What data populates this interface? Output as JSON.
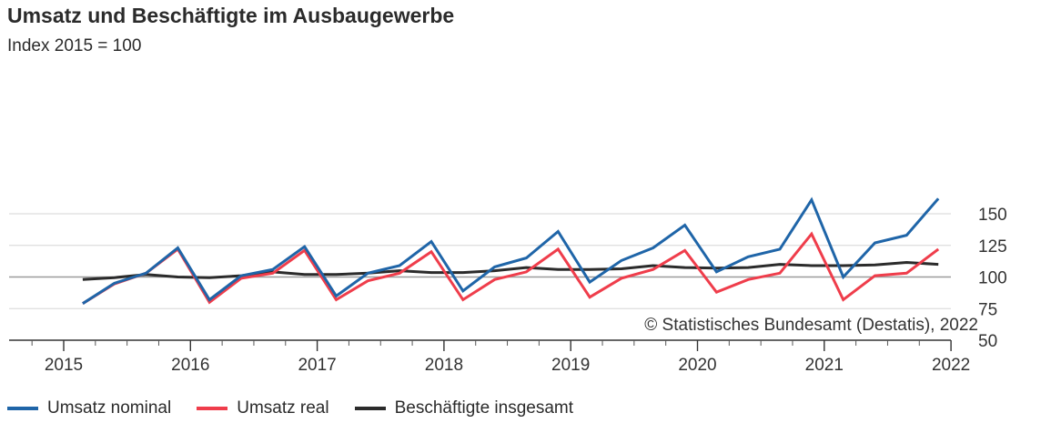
{
  "title": "Umsatz und Beschäftigte im Ausbaugewerbe",
  "subtitle": "Index 2015 = 100",
  "copyright": "© Statistisches Bundesamt (Destatis), 2022",
  "chart_data": {
    "type": "line",
    "title": "Umsatz und Beschäftigte im Ausbaugewerbe",
    "subtitle": "Index 2015 = 100",
    "xlabel": "",
    "ylabel": "",
    "ylim": [
      50,
      165
    ],
    "yticks": [
      50,
      75,
      100,
      125,
      150
    ],
    "reference_line": 100,
    "x_year_labels": [
      "2015",
      "2016",
      "2017",
      "2018",
      "2019",
      "2020",
      "2021",
      "2022"
    ],
    "x": [
      "2015-Q1",
      "2015-Q2",
      "2015-Q3",
      "2015-Q4",
      "2016-Q1",
      "2016-Q2",
      "2016-Q3",
      "2016-Q4",
      "2017-Q1",
      "2017-Q2",
      "2017-Q3",
      "2017-Q4",
      "2018-Q1",
      "2018-Q2",
      "2018-Q3",
      "2018-Q4",
      "2019-Q1",
      "2019-Q2",
      "2019-Q3",
      "2019-Q4",
      "2020-Q1",
      "2020-Q2",
      "2020-Q3",
      "2020-Q4",
      "2021-Q1",
      "2021-Q2",
      "2021-Q3",
      "2021-Q4"
    ],
    "grid": true,
    "legend_position": "bottom-left",
    "series": [
      {
        "name": "Umsatz nominal",
        "color": "#1f65a8",
        "values": [
          79,
          95,
          103,
          123,
          82,
          101,
          106,
          124,
          85,
          103,
          109,
          128,
          89,
          108,
          115,
          136,
          96,
          113,
          123,
          141,
          104,
          116,
          122,
          161,
          100,
          127,
          133,
          162
        ]
      },
      {
        "name": "Umsatz real",
        "color": "#ef3d4b",
        "values": [
          79,
          94.5,
          103,
          122,
          80,
          99,
          103,
          121,
          82,
          97,
          103,
          120,
          82,
          98,
          104,
          122,
          84,
          99,
          106,
          121,
          88,
          98,
          103,
          134,
          82,
          101,
          103,
          122
        ]
      },
      {
        "name": "Beschäftigte insgesamt",
        "color": "#2b2b2b",
        "values": [
          98,
          99.5,
          102,
          100,
          99.5,
          101,
          104,
          102,
          102,
          103,
          105,
          103.5,
          103.5,
          105,
          107.5,
          106,
          106,
          106.5,
          109,
          107.5,
          107,
          107.5,
          110,
          109,
          109,
          109.5,
          111.5,
          110
        ]
      }
    ]
  }
}
